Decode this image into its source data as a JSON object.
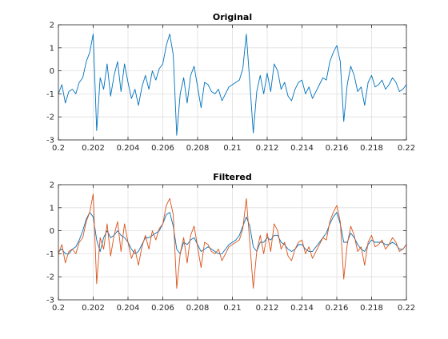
{
  "chart_data": [
    {
      "type": "line",
      "title": "Original",
      "xlabel": "",
      "ylabel": "",
      "xlim": [
        0.2,
        0.22
      ],
      "ylim": [
        -3,
        2
      ],
      "xticks": [
        "0.2",
        "0.202",
        "0.204",
        "0.206",
        "0.208",
        "0.21",
        "0.212",
        "0.214",
        "0.216",
        "0.218",
        "0.22"
      ],
      "yticks": [
        "-3",
        "-2",
        "-1",
        "0",
        "1",
        "2"
      ],
      "grid": true,
      "series": [
        {
          "color": "#0072BD",
          "x": [
            0.2,
            0.2002,
            0.2004,
            0.2006,
            0.2008,
            0.201,
            0.2012,
            0.2014,
            0.2016,
            0.2018,
            0.202,
            0.2022,
            0.2024,
            0.2026,
            0.2028,
            0.203,
            0.2032,
            0.2034,
            0.2036,
            0.2038,
            0.204,
            0.2042,
            0.2044,
            0.2046,
            0.2048,
            0.205,
            0.2052,
            0.2054,
            0.2056,
            0.2058,
            0.206,
            0.2062,
            0.2064,
            0.2066,
            0.2068,
            0.207,
            0.2072,
            0.2074,
            0.2076,
            0.2078,
            0.208,
            0.2082,
            0.2084,
            0.2086,
            0.2088,
            0.209,
            0.2092,
            0.2094,
            0.2096,
            0.2098,
            0.21,
            0.2102,
            0.2104,
            0.2106,
            0.2108,
            0.211,
            0.2112,
            0.2114,
            0.2116,
            0.2118,
            0.212,
            0.2122,
            0.2124,
            0.2126,
            0.2128,
            0.213,
            0.2132,
            0.2134,
            0.2136,
            0.2138,
            0.214,
            0.2142,
            0.2144,
            0.2146,
            0.2148,
            0.215,
            0.2152,
            0.2154,
            0.2156,
            0.2158,
            0.216,
            0.2162,
            0.2164,
            0.2166,
            0.2168,
            0.217,
            0.2172,
            0.2174,
            0.2176,
            0.2178,
            0.218,
            0.2182,
            0.2184,
            0.2186,
            0.2188,
            0.219,
            0.2192,
            0.2194,
            0.2196,
            0.2198,
            0.22
          ],
          "y": [
            -1.0,
            -0.6,
            -1.4,
            -0.9,
            -0.8,
            -1.0,
            -0.5,
            -0.3,
            0.4,
            0.8,
            1.6,
            -2.6,
            -0.3,
            -0.8,
            0.3,
            -1.1,
            -0.2,
            0.4,
            -0.9,
            0.3,
            -0.5,
            -1.2,
            -0.8,
            -1.5,
            -0.7,
            -0.2,
            -0.8,
            0.0,
            -0.4,
            0.1,
            0.3,
            1.1,
            1.6,
            0.7,
            -2.8,
            -1.0,
            -0.3,
            -1.4,
            -0.2,
            0.2,
            -0.7,
            -1.6,
            -0.5,
            -0.6,
            -0.9,
            -1.0,
            -0.8,
            -1.3,
            -1.0,
            -0.7,
            -0.6,
            -0.5,
            -0.4,
            0.1,
            1.6,
            -0.5,
            -2.7,
            -0.9,
            -0.2,
            -1.0,
            -0.1,
            -0.9,
            0.3,
            0.0,
            -0.8,
            -0.5,
            -1.1,
            -1.3,
            -0.8,
            -0.5,
            -0.4,
            -1.0,
            -0.7,
            -1.2,
            -0.9,
            -0.6,
            -0.3,
            -0.4,
            0.4,
            0.8,
            1.1,
            0.4,
            -2.2,
            -0.6,
            0.2,
            -0.2,
            -0.9,
            -0.7,
            -1.5,
            -0.5,
            -0.2,
            -0.7,
            -0.6,
            -0.4,
            -0.8,
            -0.6,
            -0.3,
            -0.5,
            -0.9,
            -0.8,
            -0.6
          ]
        }
      ]
    },
    {
      "type": "line",
      "title": "Filtered",
      "xlabel": "",
      "ylabel": "",
      "xlim": [
        0.2,
        0.22
      ],
      "ylim": [
        -3,
        2
      ],
      "xticks": [
        "0.2",
        "0.202",
        "0.204",
        "0.206",
        "0.208",
        "0.21",
        "0.212",
        "0.214",
        "0.216",
        "0.218",
        "0.22"
      ],
      "yticks": [
        "-3",
        "-2",
        "-1",
        "0",
        "1",
        "2"
      ],
      "grid": true,
      "series": [
        {
          "color": "#0072BD",
          "x": [
            0.2,
            0.2002,
            0.2004,
            0.2006,
            0.2008,
            0.201,
            0.2012,
            0.2014,
            0.2016,
            0.2018,
            0.202,
            0.2022,
            0.2024,
            0.2026,
            0.2028,
            0.203,
            0.2032,
            0.2034,
            0.2036,
            0.2038,
            0.204,
            0.2042,
            0.2044,
            0.2046,
            0.2048,
            0.205,
            0.2052,
            0.2054,
            0.2056,
            0.2058,
            0.206,
            0.2062,
            0.2064,
            0.2066,
            0.2068,
            0.207,
            0.2072,
            0.2074,
            0.2076,
            0.2078,
            0.208,
            0.2082,
            0.2084,
            0.2086,
            0.2088,
            0.209,
            0.2092,
            0.2094,
            0.2096,
            0.2098,
            0.21,
            0.2102,
            0.2104,
            0.2106,
            0.2108,
            0.211,
            0.2112,
            0.2114,
            0.2116,
            0.2118,
            0.212,
            0.2122,
            0.2124,
            0.2126,
            0.2128,
            0.213,
            0.2132,
            0.2134,
            0.2136,
            0.2138,
            0.214,
            0.2142,
            0.2144,
            0.2146,
            0.2148,
            0.215,
            0.2152,
            0.2154,
            0.2156,
            0.2158,
            0.216,
            0.2162,
            0.2164,
            0.2166,
            0.2168,
            0.217,
            0.2172,
            0.2174,
            0.2176,
            0.2178,
            0.218,
            0.2182,
            0.2184,
            0.2186,
            0.2188,
            0.219,
            0.2192,
            0.2194,
            0.2196,
            0.2198,
            0.22
          ],
          "y": [
            -0.9,
            -0.8,
            -1.0,
            -1.0,
            -0.8,
            -0.7,
            -0.4,
            0.0,
            0.5,
            0.8,
            0.6,
            -0.4,
            -0.9,
            -0.3,
            0.0,
            -0.3,
            -0.2,
            0.0,
            -0.2,
            -0.3,
            -0.5,
            -0.8,
            -1.0,
            -0.9,
            -0.6,
            -0.3,
            -0.3,
            -0.2,
            -0.1,
            0.0,
            0.3,
            0.7,
            0.8,
            0.2,
            -0.8,
            -1.0,
            -0.5,
            -0.6,
            -0.4,
            -0.3,
            -0.6,
            -0.9,
            -0.8,
            -0.7,
            -0.8,
            -0.9,
            -1.0,
            -1.0,
            -0.8,
            -0.6,
            -0.5,
            -0.4,
            -0.2,
            0.2,
            0.6,
            0.2,
            -0.7,
            -0.9,
            -0.5,
            -0.5,
            -0.3,
            -0.4,
            -0.2,
            -0.2,
            -0.5,
            -0.6,
            -0.8,
            -0.9,
            -0.8,
            -0.6,
            -0.6,
            -0.8,
            -0.9,
            -0.9,
            -0.7,
            -0.5,
            -0.3,
            -0.1,
            0.3,
            0.6,
            0.8,
            0.3,
            -0.5,
            -0.5,
            -0.1,
            -0.3,
            -0.6,
            -0.8,
            -0.9,
            -0.6,
            -0.4,
            -0.5,
            -0.5,
            -0.5,
            -0.6,
            -0.6,
            -0.5,
            -0.6,
            -0.8,
            -0.8,
            -0.6
          ]
        },
        {
          "color": "#D95319",
          "x": [
            0.2,
            0.2002,
            0.2004,
            0.2006,
            0.2008,
            0.201,
            0.2012,
            0.2014,
            0.2016,
            0.2018,
            0.202,
            0.2022,
            0.2024,
            0.2026,
            0.2028,
            0.203,
            0.2032,
            0.2034,
            0.2036,
            0.2038,
            0.204,
            0.2042,
            0.2044,
            0.2046,
            0.2048,
            0.205,
            0.2052,
            0.2054,
            0.2056,
            0.2058,
            0.206,
            0.2062,
            0.2064,
            0.2066,
            0.2068,
            0.207,
            0.2072,
            0.2074,
            0.2076,
            0.2078,
            0.208,
            0.2082,
            0.2084,
            0.2086,
            0.2088,
            0.209,
            0.2092,
            0.2094,
            0.2096,
            0.2098,
            0.21,
            0.2102,
            0.2104,
            0.2106,
            0.2108,
            0.211,
            0.2112,
            0.2114,
            0.2116,
            0.2118,
            0.212,
            0.2122,
            0.2124,
            0.2126,
            0.2128,
            0.213,
            0.2132,
            0.2134,
            0.2136,
            0.2138,
            0.214,
            0.2142,
            0.2144,
            0.2146,
            0.2148,
            0.215,
            0.2152,
            0.2154,
            0.2156,
            0.2158,
            0.216,
            0.2162,
            0.2164,
            0.2166,
            0.2168,
            0.217,
            0.2172,
            0.2174,
            0.2176,
            0.2178,
            0.218,
            0.2182,
            0.2184,
            0.2186,
            0.2188,
            0.219,
            0.2192,
            0.2194,
            0.2196,
            0.2198,
            0.22
          ],
          "y": [
            -1.0,
            -0.6,
            -1.4,
            -0.9,
            -0.8,
            -1.0,
            -0.5,
            -0.3,
            0.4,
            0.8,
            1.6,
            -2.3,
            -0.3,
            -0.8,
            0.3,
            -1.1,
            -0.2,
            0.4,
            -0.9,
            0.3,
            -0.5,
            -1.2,
            -0.8,
            -1.5,
            -0.7,
            -0.2,
            -0.8,
            0.0,
            -0.4,
            0.1,
            0.3,
            1.1,
            1.4,
            0.7,
            -2.5,
            -1.0,
            -0.3,
            -1.4,
            -0.2,
            0.2,
            -0.7,
            -1.6,
            -0.5,
            -0.6,
            -0.9,
            -1.0,
            -0.8,
            -1.3,
            -1.0,
            -0.7,
            -0.6,
            -0.5,
            -0.4,
            0.1,
            1.4,
            -0.5,
            -2.5,
            -0.9,
            -0.2,
            -1.0,
            -0.1,
            -0.9,
            0.3,
            0.0,
            -0.8,
            -0.5,
            -1.1,
            -1.3,
            -0.8,
            -0.5,
            -0.4,
            -1.0,
            -0.7,
            -1.2,
            -0.9,
            -0.6,
            -0.3,
            -0.4,
            0.4,
            0.8,
            1.1,
            0.4,
            -2.1,
            -0.6,
            0.2,
            -0.2,
            -0.9,
            -0.7,
            -1.5,
            -0.5,
            -0.2,
            -0.7,
            -0.6,
            -0.4,
            -0.8,
            -0.6,
            -0.3,
            -0.5,
            -0.9,
            -0.8,
            -0.6
          ]
        }
      ]
    }
  ]
}
